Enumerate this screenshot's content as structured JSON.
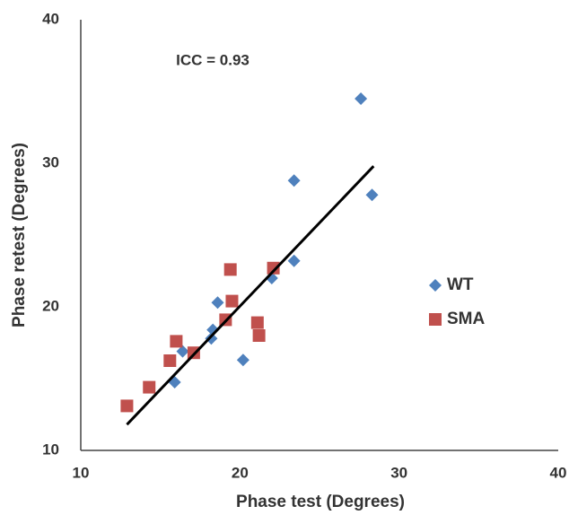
{
  "chart_data": {
    "type": "scatter",
    "annotation": "ICC = 0.93",
    "x_label": "Phase test (Degrees)",
    "y_label": "Phase retest (Degrees)",
    "xlim": [
      10,
      40
    ],
    "xticks": [
      10,
      20,
      30,
      40
    ],
    "ylim": [
      10,
      40
    ],
    "yticks": [
      10,
      20,
      30,
      40
    ],
    "grid": false,
    "legend": "right",
    "series": [
      {
        "name": "WT",
        "color": "#4f81bd",
        "marker": "diamond",
        "x": [
          27.6,
          23.4,
          28.3,
          23.4,
          22.0,
          18.6,
          18.3,
          18.2,
          20.2,
          16.4,
          15.9
        ],
        "values": [
          34.5,
          28.8,
          27.8,
          23.2,
          22.0,
          20.3,
          18.4,
          17.8,
          16.3,
          16.9,
          14.75
        ]
      },
      {
        "name": "SMA",
        "color": "#c0504d",
        "marker": "square",
        "x": [
          12.9,
          14.3,
          16.0,
          15.6,
          17.1,
          19.4,
          19.5,
          19.1,
          21.1,
          21.2,
          22.1
        ],
        "values": [
          13.1,
          14.4,
          17.6,
          16.25,
          16.8,
          22.6,
          20.4,
          19.1,
          18.9,
          18.0,
          22.7
        ]
      }
    ],
    "trendline": {
      "color": "#000000",
      "x": [
        12.9,
        28.4
      ],
      "y": [
        11.8,
        29.8
      ]
    }
  }
}
